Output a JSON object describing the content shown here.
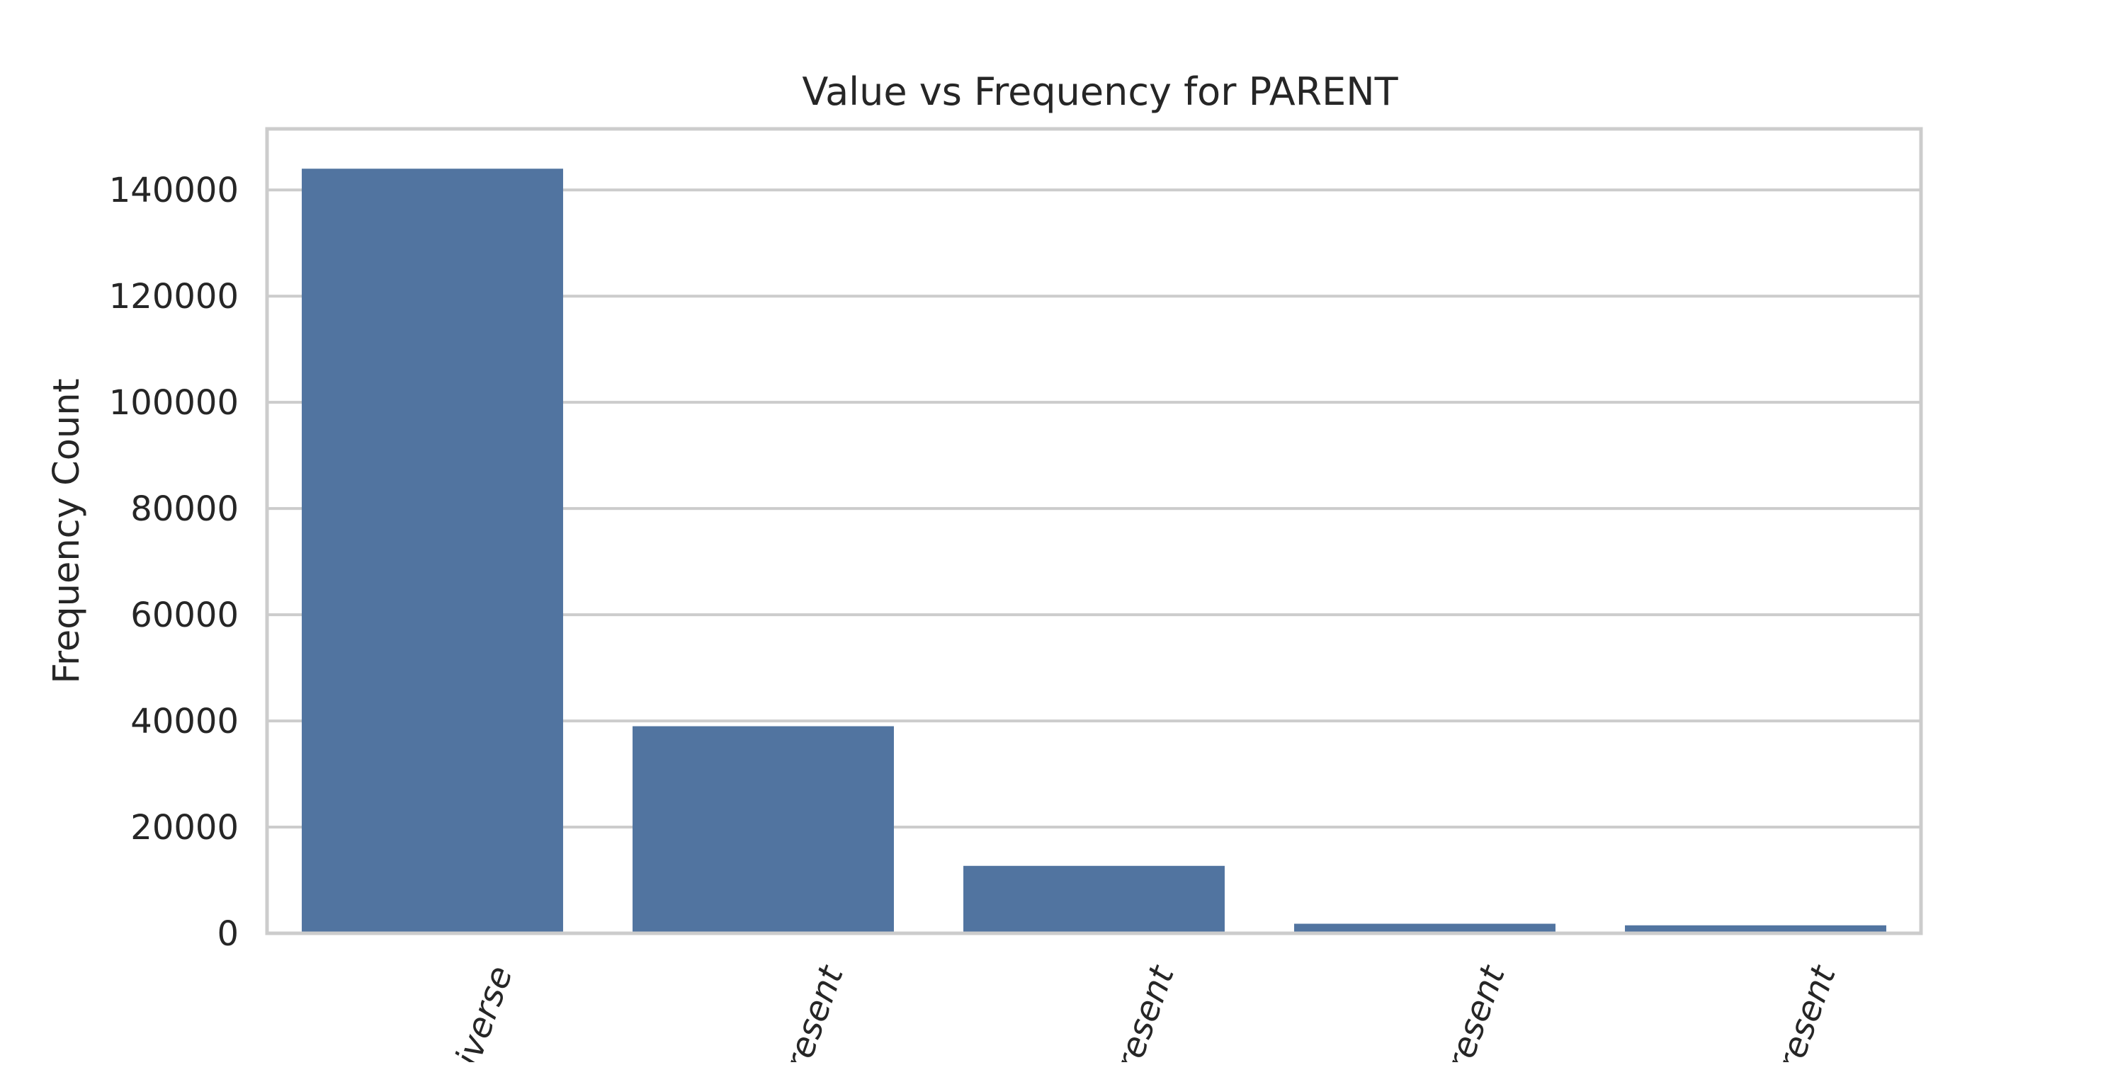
{
  "chart_data": {
    "type": "bar",
    "title": "Value vs Frequency for PARENT",
    "xlabel": "",
    "ylabel": "Frequency Count",
    "categories": [
      "iverse",
      "resent",
      "resent",
      "resent",
      "resent"
    ],
    "values": [
      144000,
      39000,
      12700,
      1800,
      1500
    ],
    "ylim": [
      0,
      151500
    ],
    "yticks": [
      0,
      20000,
      40000,
      60000,
      80000,
      100000,
      120000,
      140000
    ],
    "ytick_labels": [
      "0",
      "20000",
      "40000",
      "60000",
      "80000",
      "100000",
      "120000",
      "140000"
    ],
    "grid": true,
    "grid_axis": "y",
    "legend": "none",
    "x_tick_rotation_deg": 70
  },
  "colors": {
    "bar": "#5174a0",
    "grid": "#cccccc",
    "frame": "#cccccc",
    "text": "#262626",
    "background": "#ffffff"
  }
}
